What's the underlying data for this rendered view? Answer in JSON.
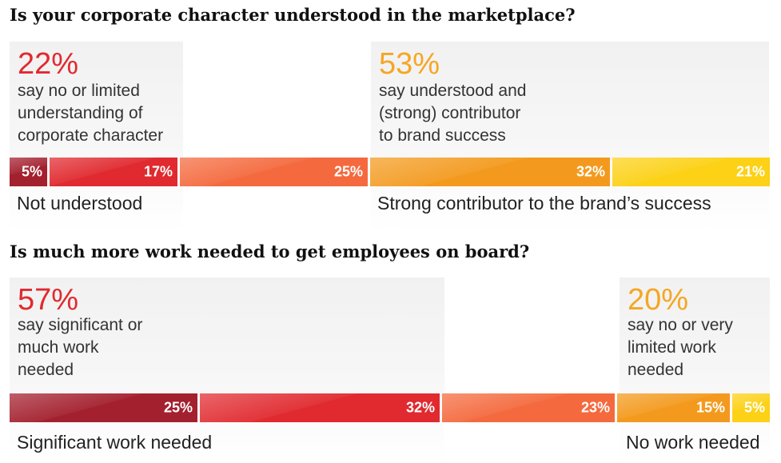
{
  "chart_data": [
    {
      "type": "bar",
      "orientation": "horizontal-stacked",
      "title": "Is your corporate character understood in the marketplace?",
      "summaries": [
        {
          "pct": "22%",
          "text": [
            "say no or limited",
            "understanding of",
            "corporate character"
          ]
        },
        {
          "pct": "53%",
          "text": [
            "say understood and",
            "(strong) contributor",
            "to brand success"
          ]
        }
      ],
      "segments": [
        {
          "value": 5,
          "label": "5%",
          "color": "#a3202e"
        },
        {
          "value": 17,
          "label": "17%",
          "color": "#e02a2f"
        },
        {
          "value": 25,
          "label": "25%",
          "color": "#f46a3e"
        },
        {
          "value": 32,
          "label": "32%",
          "color": "#f39a1e"
        },
        {
          "value": 21,
          "label": "21%",
          "color": "#fcd116"
        }
      ],
      "end_labels": [
        "Not understood",
        "Strong contributor to the brand’s success"
      ]
    },
    {
      "type": "bar",
      "orientation": "horizontal-stacked",
      "title": "Is much more work needed to get employees on board?",
      "summaries": [
        {
          "pct": "57%",
          "text": [
            "say significant or",
            "much work",
            "needed"
          ]
        },
        {
          "pct": "20%",
          "text": [
            "say no or very",
            "limited work",
            "needed"
          ]
        }
      ],
      "segments": [
        {
          "value": 25,
          "label": "25%",
          "color": "#a3202e"
        },
        {
          "value": 32,
          "label": "32%",
          "color": "#e02a2f"
        },
        {
          "value": 23,
          "label": "23%",
          "color": "#f46a3e"
        },
        {
          "value": 15,
          "label": "15%",
          "color": "#f39a1e"
        },
        {
          "value": 5,
          "label": "5%",
          "color": "#fcd116"
        }
      ],
      "end_labels": [
        "Significant work needed",
        "No work needed"
      ]
    }
  ],
  "colors": {
    "red_accent": "#e02a2f",
    "orange_accent": "#f5a623"
  }
}
